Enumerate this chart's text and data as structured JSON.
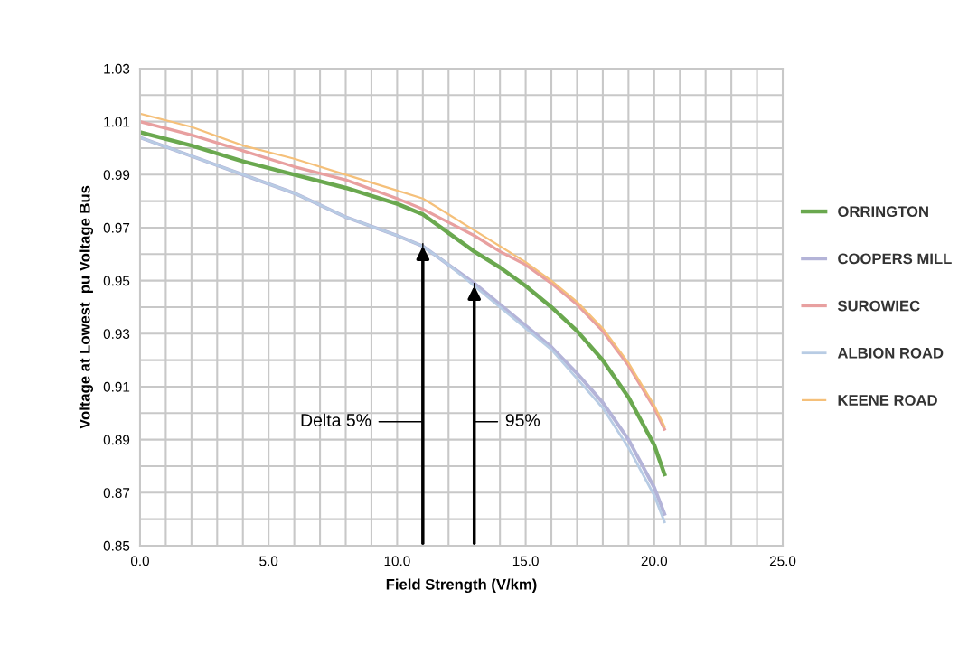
{
  "chart_data": {
    "type": "line",
    "xlabel": "Field Strength (V/km)",
    "ylabel": "Voltage at Lowest  pu Voltage Bus",
    "x": [
      0,
      2,
      4,
      6,
      8,
      10,
      11,
      12,
      13,
      14,
      15,
      16,
      17,
      18,
      19,
      20,
      20.4
    ],
    "series": [
      {
        "name": "ORRINGTON",
        "color": "#6aa84f",
        "values": [
          1.006,
          1.001,
          0.995,
          0.99,
          0.985,
          0.979,
          0.975,
          0.968,
          0.961,
          0.955,
          0.948,
          0.94,
          0.931,
          0.92,
          0.906,
          0.888,
          0.877
        ]
      },
      {
        "name": "COOPERS MILL",
        "color": "#b4b4d8",
        "values": [
          1.004,
          0.997,
          0.99,
          0.983,
          0.974,
          0.967,
          0.963,
          0.956,
          0.949,
          0.941,
          0.933,
          0.925,
          0.915,
          0.904,
          0.89,
          0.872,
          0.862
        ]
      },
      {
        "name": "SUROWIEC",
        "color": "#e8a0a0",
        "values": [
          1.01,
          1.005,
          0.999,
          0.993,
          0.988,
          0.981,
          0.977,
          0.972,
          0.967,
          0.961,
          0.956,
          0.949,
          0.941,
          0.931,
          0.918,
          0.902,
          0.894
        ]
      },
      {
        "name": "ALBION ROAD",
        "color": "#b8cce4",
        "values": [
          1.004,
          0.997,
          0.99,
          0.983,
          0.974,
          0.967,
          0.963,
          0.956,
          0.948,
          0.94,
          0.932,
          0.924,
          0.913,
          0.902,
          0.887,
          0.869,
          0.859
        ]
      },
      {
        "name": "KEENE ROAD",
        "color": "#f5c07a",
        "values": [
          1.013,
          1.008,
          1.001,
          0.996,
          0.99,
          0.984,
          0.981,
          0.975,
          0.969,
          0.963,
          0.957,
          0.95,
          0.942,
          0.932,
          0.919,
          0.903,
          0.895
        ]
      }
    ],
    "xlim": [
      0,
      25
    ],
    "xticks": [
      {
        "value": 0,
        "label": "0.0"
      },
      {
        "value": 1,
        "label": null
      },
      {
        "value": 2,
        "label": null
      },
      {
        "value": 3,
        "label": null
      },
      {
        "value": 4,
        "label": null
      },
      {
        "value": 5,
        "label": "5.0"
      },
      {
        "value": 6,
        "label": null
      },
      {
        "value": 7,
        "label": null
      },
      {
        "value": 8,
        "label": null
      },
      {
        "value": 9,
        "label": null
      },
      {
        "value": 10,
        "label": "10.0"
      },
      {
        "value": 11,
        "label": null
      },
      {
        "value": 12,
        "label": null
      },
      {
        "value": 13,
        "label": null
      },
      {
        "value": 14,
        "label": null
      },
      {
        "value": 15,
        "label": "15.0"
      },
      {
        "value": 16,
        "label": null
      },
      {
        "value": 17,
        "label": null
      },
      {
        "value": 18,
        "label": null
      },
      {
        "value": 19,
        "label": null
      },
      {
        "value": 20,
        "label": "20.0"
      },
      {
        "value": 21,
        "label": null
      },
      {
        "value": 22,
        "label": null
      },
      {
        "value": 23,
        "label": null
      },
      {
        "value": 24,
        "label": null
      },
      {
        "value": 25,
        "label": "25.0"
      }
    ],
    "ylim": [
      0.85,
      1.03
    ],
    "yticks": [
      0.85,
      {
        "value": 0.86,
        "label": null
      },
      0.87,
      {
        "value": 0.88,
        "label": null
      },
      0.89,
      {
        "value": 0.9,
        "label": null
      },
      0.91,
      {
        "value": 0.92,
        "label": null
      },
      0.93,
      {
        "value": 0.94,
        "label": null
      },
      0.95,
      {
        "value": 0.96,
        "label": null
      },
      0.97,
      {
        "value": 0.98,
        "label": null
      },
      0.99,
      {
        "value": 1.0,
        "label": null
      },
      1.01,
      {
        "value": 1.02,
        "label": null
      },
      1.03
    ],
    "grid": true,
    "legend": "right",
    "marker": "none",
    "line_style": "solid",
    "annotations": [
      {
        "text": "Delta 5%",
        "x": 11,
        "y": 0.964
      },
      {
        "text": "95%",
        "x": 13,
        "y": 0.949
      }
    ]
  }
}
